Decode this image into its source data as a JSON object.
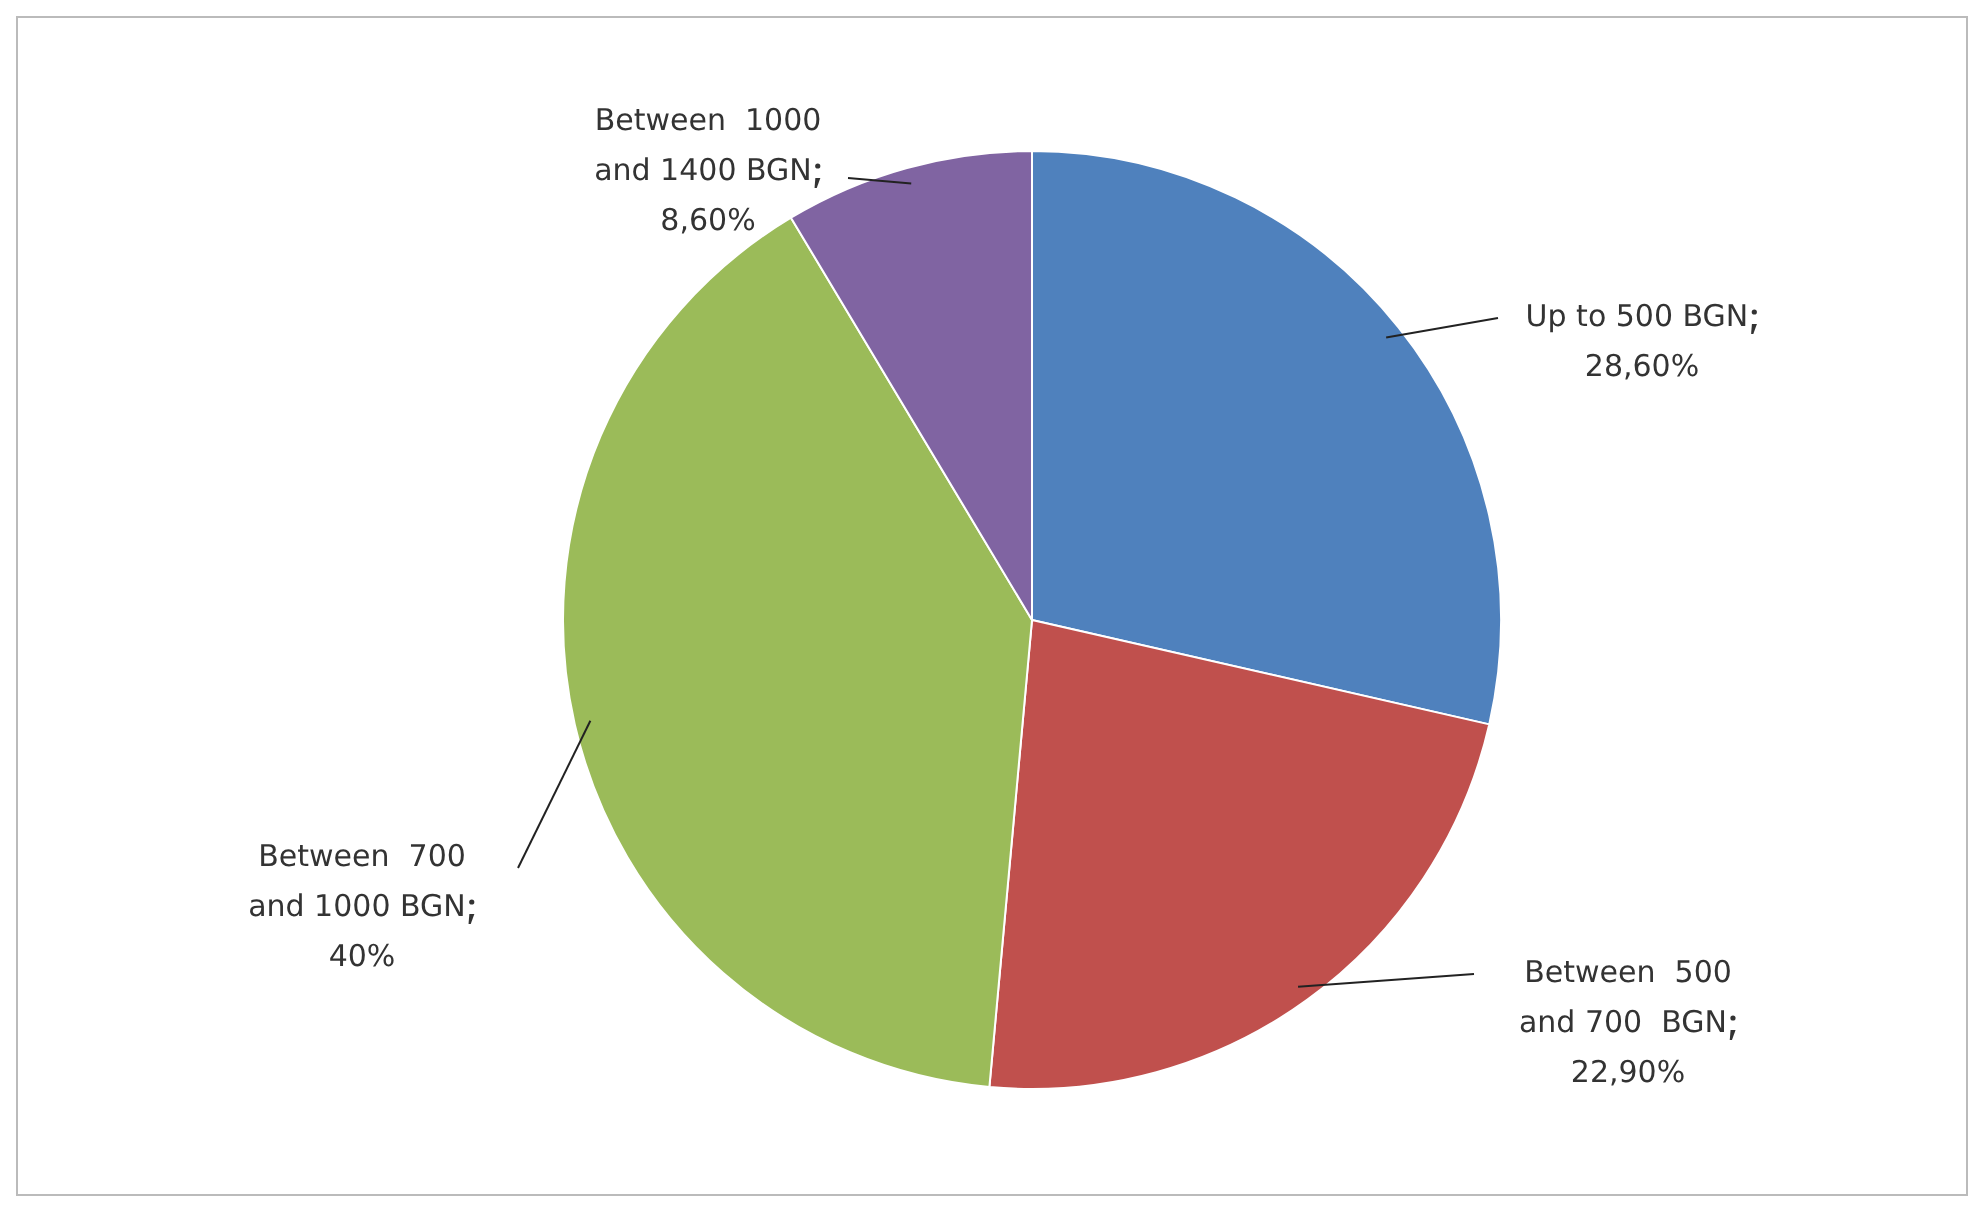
{
  "chart_data": {
    "type": "pie",
    "categories": [
      "Up to 500 BGN",
      "Between  500 and 700  BGN",
      "Between  700 and 1000 BGN",
      "Between  1000 and 1400 BGN"
    ],
    "values": [
      28.6,
      22.9,
      40,
      8.6
    ],
    "colors": [
      "#4f81bd",
      "#c0504d",
      "#9bbb59",
      "#8064a2"
    ],
    "value_labels": [
      "28,60%",
      "22,90%",
      "40%",
      "8,60%"
    ],
    "legend": false
  }
}
